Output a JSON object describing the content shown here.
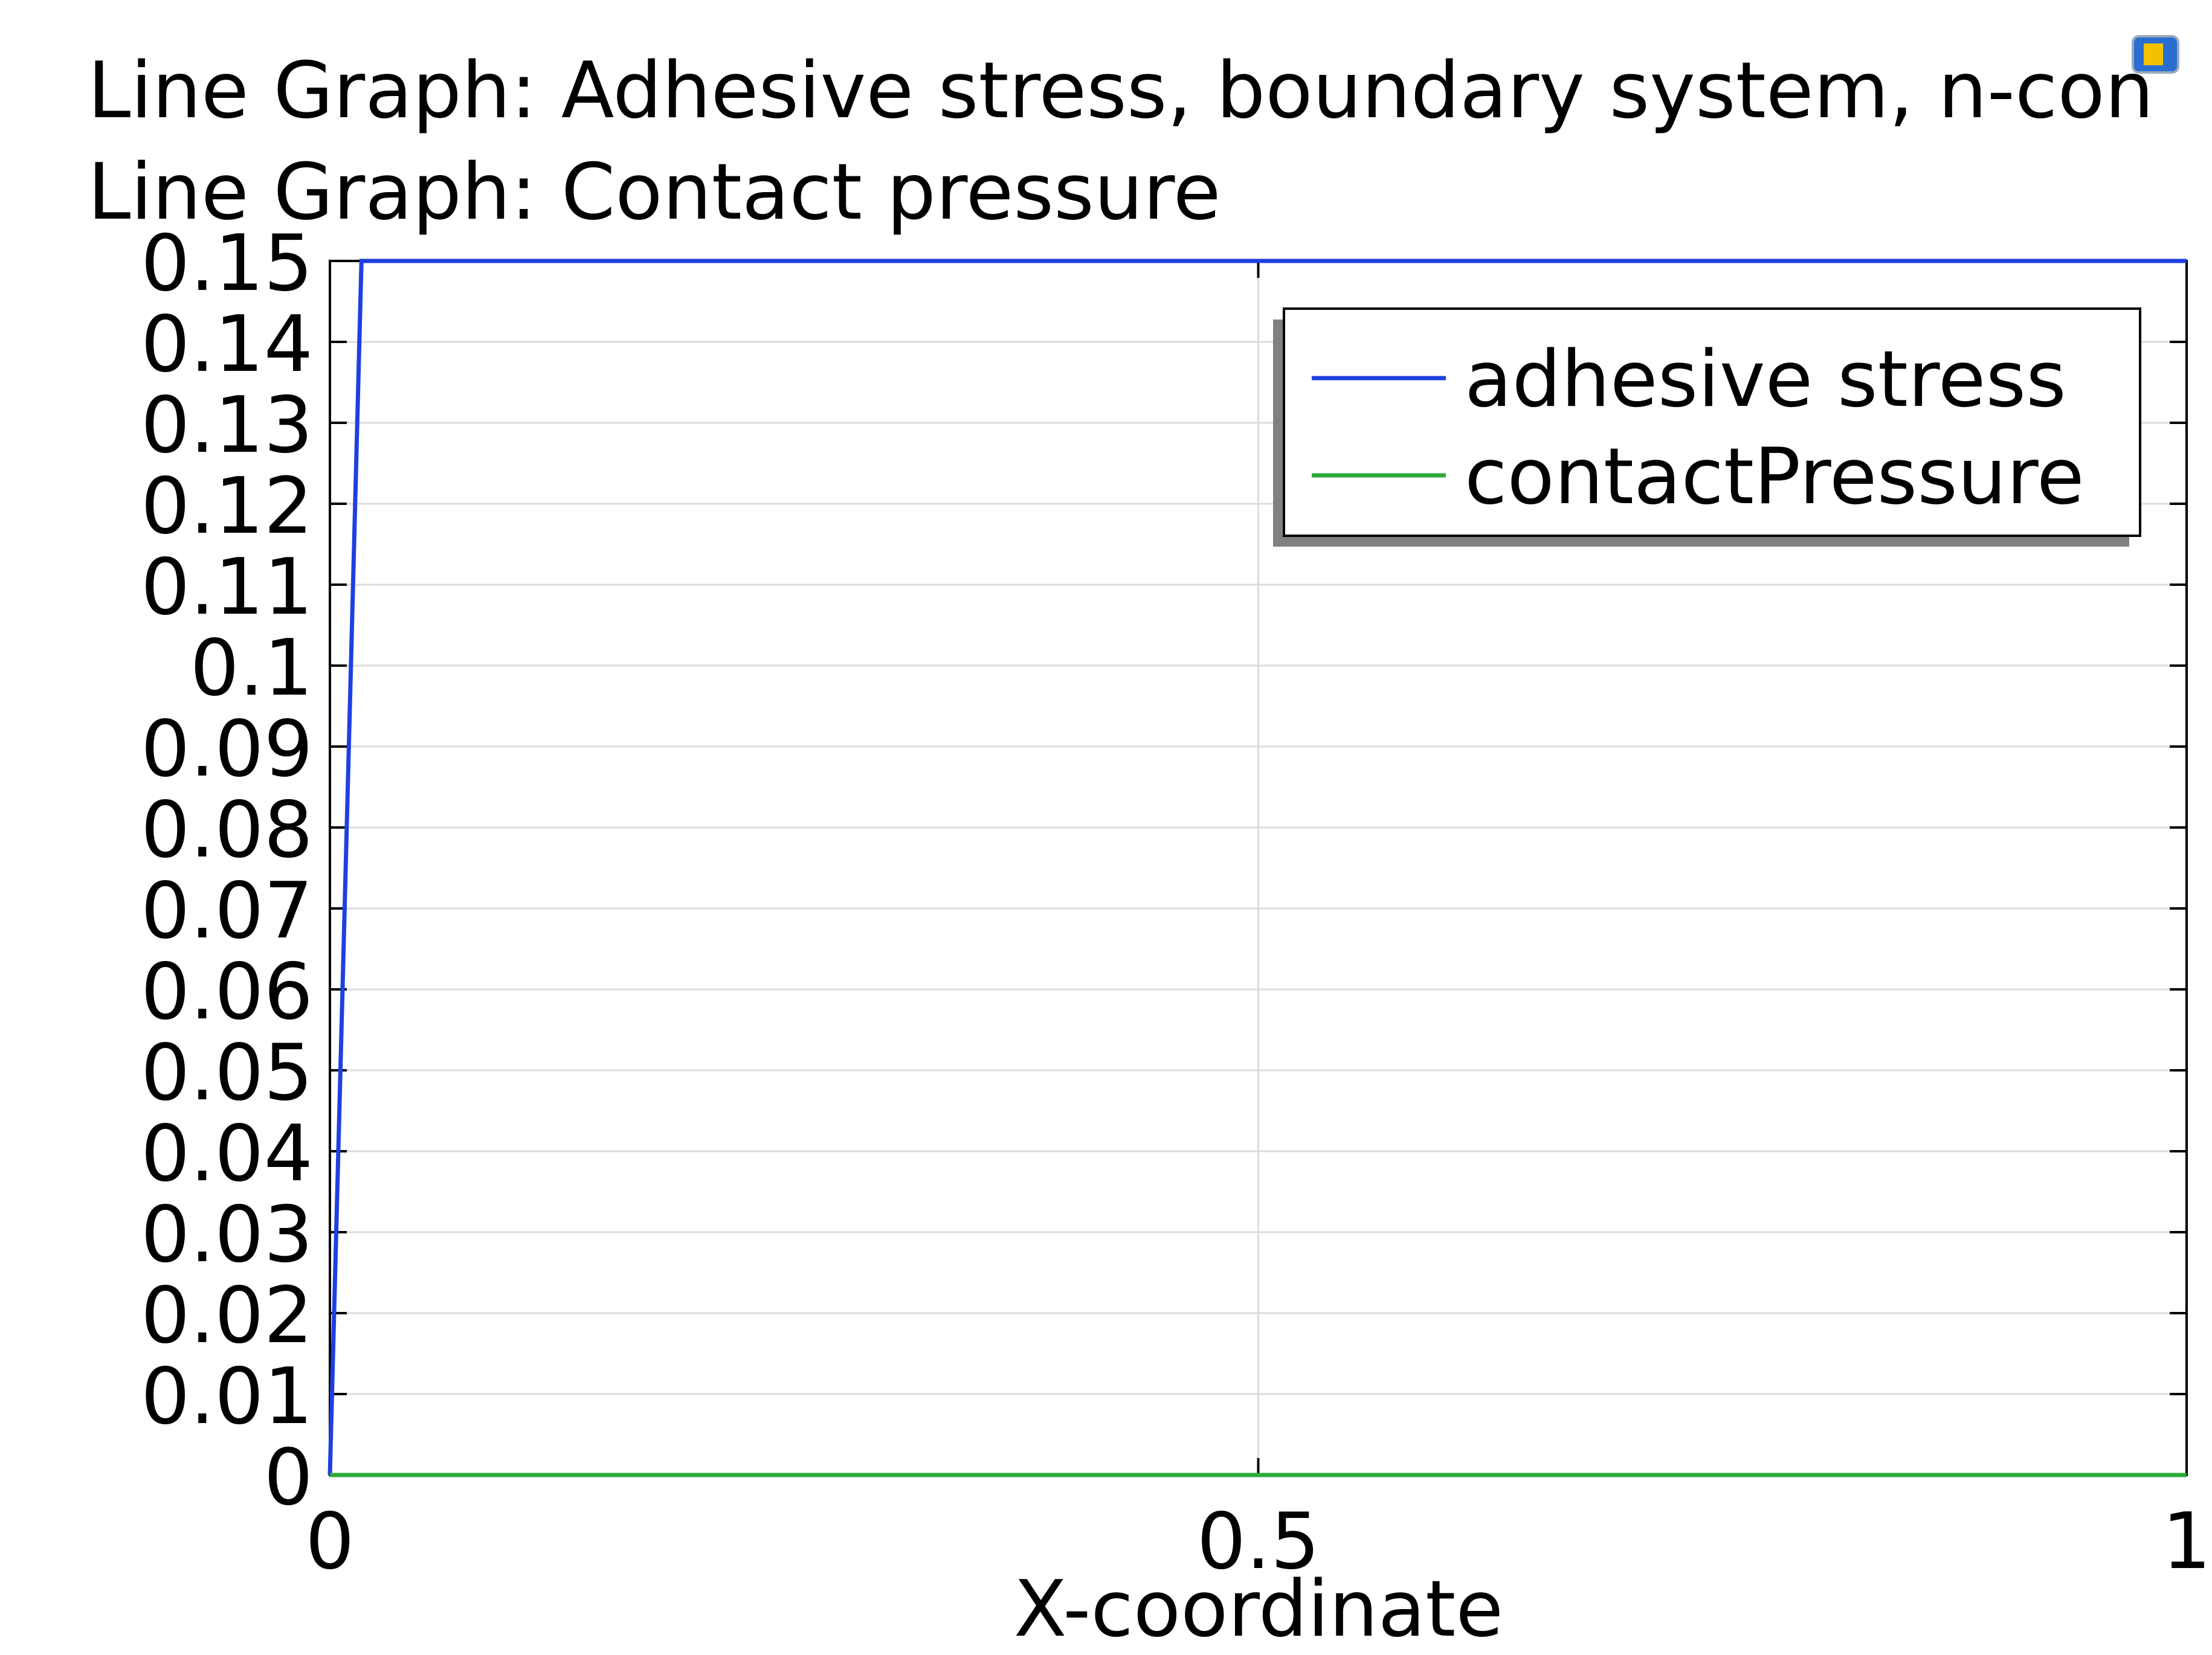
{
  "chart_data": {
    "type": "line",
    "title": "Line Graph: Adhesive stress, boundary system, n-con",
    "subtitle": "Line Graph: Contact pressure",
    "x_label": "X-coordinate",
    "series": [
      {
        "name": "adhesive stress",
        "color": "#1f3fe0",
        "x": [
          0,
          0.017,
          1
        ],
        "values": [
          0,
          0.15,
          0.15
        ]
      },
      {
        "name": "contactPressure",
        "color": "#2ca83a",
        "x": [
          0,
          1
        ],
        "values": [
          0,
          0
        ]
      }
    ],
    "xlim": [
      0,
      1
    ],
    "xticks": [
      0,
      0.5,
      1
    ],
    "ylim": [
      0,
      0.15
    ],
    "yticks": [
      0,
      0.01,
      0.02,
      0.03,
      0.04,
      0.05,
      0.06,
      0.07,
      0.08,
      0.09,
      0.1,
      0.11,
      0.12,
      0.13,
      0.14,
      0.15
    ],
    "grid": true,
    "legend": "upper right"
  }
}
